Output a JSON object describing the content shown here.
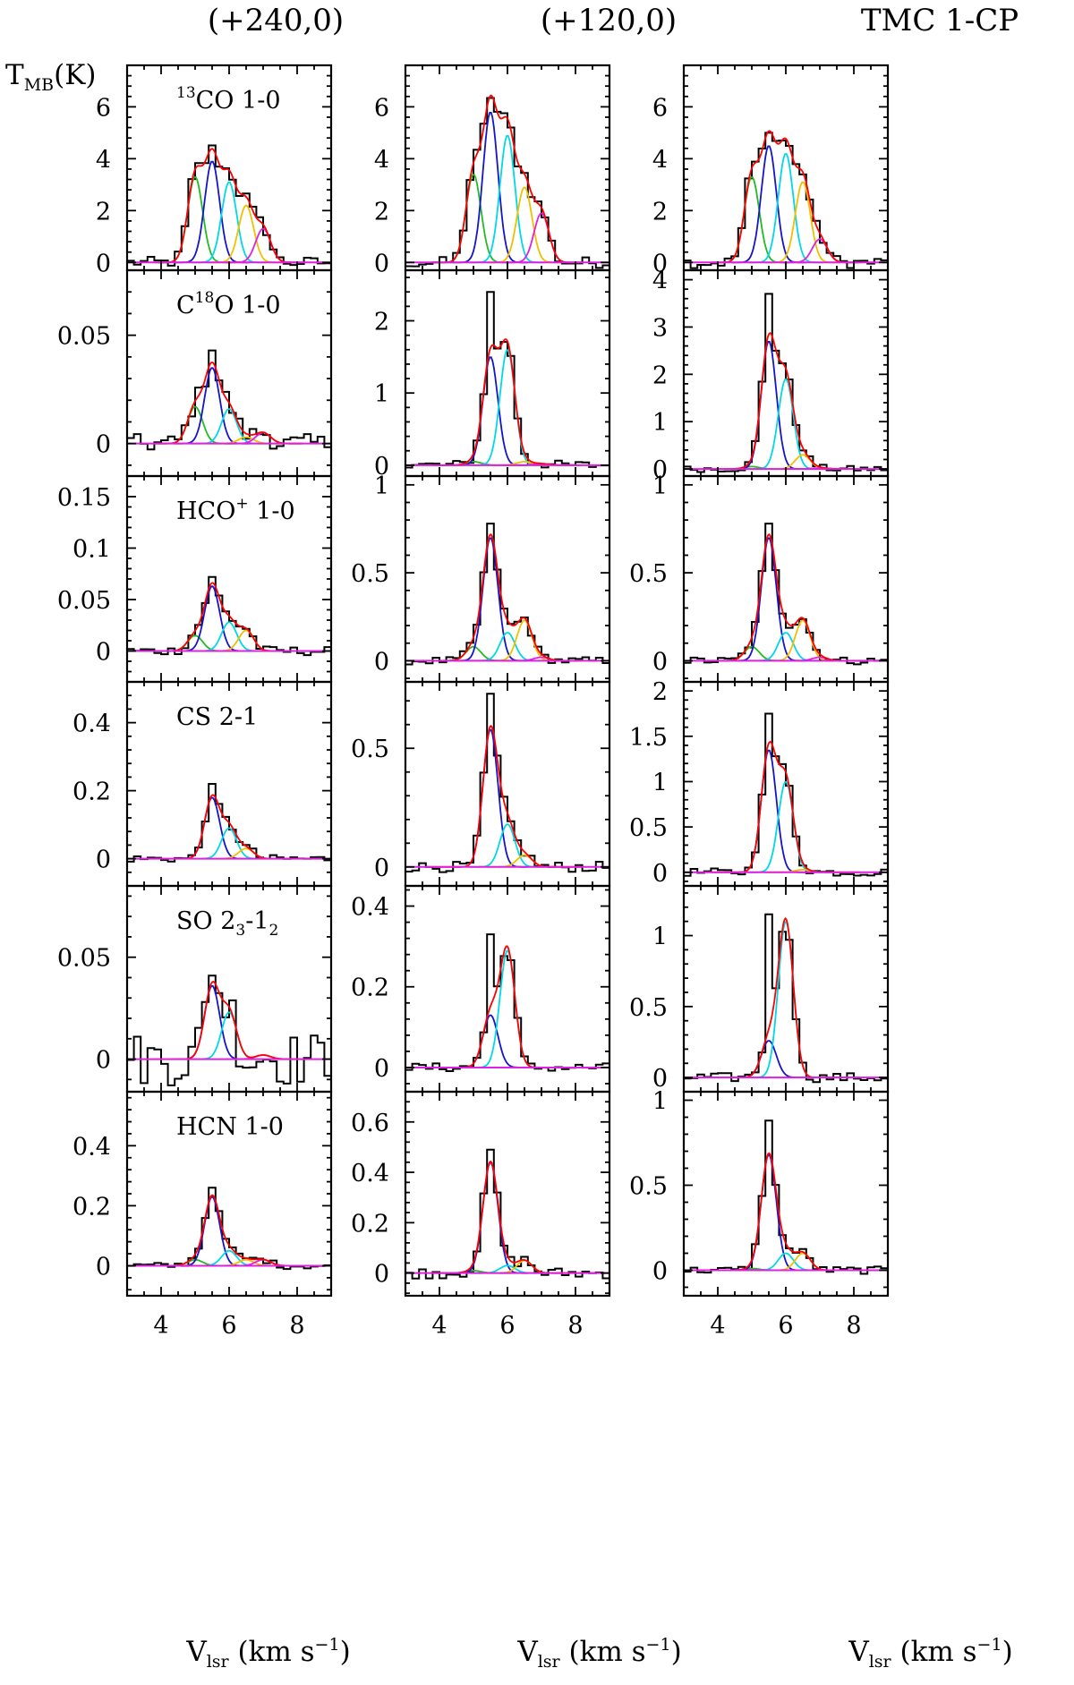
{
  "figure": {
    "ylabel": "T",
    "ylabel_sub": "MB",
    "ylabel_unit": "(K)",
    "xlabel_main": "V",
    "xlabel_sub": "lsr",
    "xlabel_unit": " (km s",
    "xlabel_exp": "−1",
    "xlabel_close": ")",
    "xticks": [
      "4",
      "6",
      "8"
    ],
    "columns": [
      {
        "title": "(+240,0)"
      },
      {
        "title": "(+120,0)"
      },
      {
        "title": "TMC 1-CP"
      }
    ],
    "lines": [
      {
        "pre": "",
        "sup": "13",
        "mid": "CO 1-0",
        "sub": "",
        "post": ""
      },
      {
        "pre": "C",
        "sup": "18",
        "mid": "O 1-0",
        "sub": "",
        "post": ""
      },
      {
        "pre": "HCO",
        "sup": "+",
        "mid": " 1-0",
        "sub": "",
        "post": ""
      },
      {
        "pre": "CS 2-1",
        "sup": "",
        "mid": "",
        "sub": "",
        "post": ""
      },
      {
        "pre": "SO 2",
        "sup": "",
        "mid": "",
        "sub": "3",
        "post": "-1",
        "sub2": "2"
      },
      {
        "pre": "HCN 1-0",
        "sup": "",
        "mid": "",
        "sub": "",
        "post": ""
      }
    ]
  },
  "colors": {
    "observed": "#000000",
    "total_fit": "#ff0000",
    "baseline": "#e020e0",
    "components": [
      "#22bb22",
      "#1515c8",
      "#00d8e8",
      "#f0c000",
      "#e020e0"
    ]
  },
  "chart_data": {
    "type": "line",
    "x_unit": "km s-1",
    "xlim": [
      3.0,
      9.0
    ],
    "component_centers": [
      5.0,
      5.5,
      6.0,
      6.5,
      7.0
    ],
    "component_sigma": 0.22,
    "panels": [
      [
        {
          "ylim": [
            -0.3,
            7.6
          ],
          "yticks": [
            0,
            2,
            4,
            6
          ],
          "amps": [
            3.3,
            3.9,
            3.1,
            2.2,
            1.3
          ],
          "noise": 0.1,
          "peak_obs": 4.1
        },
        {
          "ylim": [
            -0.3,
            7.6
          ],
          "yticks": [
            0,
            2,
            4,
            6
          ],
          "amps": [
            3.4,
            5.8,
            4.9,
            2.9,
            1.9
          ],
          "noise": 0.1,
          "peak_obs": 6.2
        },
        {
          "ylim": [
            -0.3,
            7.6
          ],
          "yticks": [
            0,
            2,
            4,
            6
          ],
          "amps": [
            3.3,
            4.5,
            4.2,
            3.1,
            0.9
          ],
          "noise": 0.1,
          "peak_obs": 5.0
        }
      ],
      [
        {
          "ylim": [
            -0.015,
            0.08
          ],
          "yticks": [
            0,
            0.05
          ],
          "amps": [
            0.017,
            0.035,
            0.016,
            0.003,
            0.005
          ],
          "noise": 0.002,
          "peak_obs": 0.043
        },
        {
          "ylim": [
            -0.15,
            2.7
          ],
          "yticks": [
            0,
            1,
            2
          ],
          "amps": [
            0.05,
            1.5,
            1.6,
            0.05,
            0.02
          ],
          "noise": 0.03,
          "peak_obs": 2.4
        },
        {
          "ylim": [
            -0.15,
            4.2
          ],
          "yticks": [
            0,
            1,
            2,
            3,
            4
          ],
          "amps": [
            0.05,
            2.7,
            1.9,
            0.3,
            0.02
          ],
          "noise": 0.03,
          "peak_obs": 3.7
        }
      ],
      [
        {
          "ylim": [
            -0.03,
            0.17
          ],
          "yticks": [
            0,
            0.05,
            0.1,
            0.15
          ],
          "amps": [
            0.015,
            0.063,
            0.028,
            0.02,
            0.0
          ],
          "noise": 0.002,
          "peak_obs": 0.072
        },
        {
          "ylim": [
            -0.12,
            1.05
          ],
          "yticks": [
            0,
            0.5,
            1
          ],
          "amps": [
            0.08,
            0.7,
            0.16,
            0.23,
            0.02
          ],
          "noise": 0.01,
          "peak_obs": 0.78
        },
        {
          "ylim": [
            -0.12,
            1.05
          ],
          "yticks": [
            0,
            0.5,
            1
          ],
          "amps": [
            0.08,
            0.7,
            0.16,
            0.23,
            0.02
          ],
          "noise": 0.01,
          "peak_obs": 0.78
        }
      ],
      [
        {
          "ylim": [
            -0.08,
            0.52
          ],
          "yticks": [
            0,
            0.2,
            0.4
          ],
          "amps": [
            0.0,
            0.18,
            0.09,
            0.03,
            0.0
          ],
          "noise": 0.005,
          "peak_obs": 0.22
        },
        {
          "ylim": [
            -0.08,
            0.78
          ],
          "yticks": [
            0,
            0.5
          ],
          "amps": [
            0.0,
            0.58,
            0.18,
            0.05,
            0.0
          ],
          "noise": 0.01,
          "peak_obs": 0.73
        },
        {
          "ylim": [
            -0.15,
            2.1
          ],
          "yticks": [
            0,
            0.5,
            1,
            1.5,
            2
          ],
          "amps": [
            0.0,
            1.35,
            1.0,
            0.03,
            0.0
          ],
          "noise": 0.02,
          "peak_obs": 1.75
        }
      ],
      [
        {
          "ylim": [
            -0.016,
            0.085
          ],
          "yticks": [
            0,
            0.05
          ],
          "amps": [
            0.0,
            0.036,
            0.023,
            0.0,
            0.002
          ],
          "noise": 0.006,
          "peak_obs": 0.041
        },
        {
          "ylim": [
            -0.06,
            0.45
          ],
          "yticks": [
            0,
            0.2,
            0.4
          ],
          "amps": [
            0.0,
            0.13,
            0.29,
            0.0,
            0.0
          ],
          "noise": 0.005,
          "peak_obs": 0.33
        },
        {
          "ylim": [
            -0.1,
            1.35
          ],
          "yticks": [
            0,
            0.5,
            1
          ],
          "amps": [
            0.0,
            0.26,
            1.1,
            0.0,
            0.0
          ],
          "noise": 0.015,
          "peak_obs": 1.15
        }
      ],
      [
        {
          "ylim": [
            -0.1,
            0.58
          ],
          "yticks": [
            0,
            0.2,
            0.4
          ],
          "amps": [
            0.02,
            0.23,
            0.05,
            0.02,
            0.02
          ],
          "noise": 0.005,
          "peak_obs": 0.26
        },
        {
          "ylim": [
            -0.09,
            0.72
          ],
          "yticks": [
            0,
            0.2,
            0.4,
            0.6
          ],
          "amps": [
            0.01,
            0.44,
            0.03,
            0.05,
            0.0
          ],
          "noise": 0.01,
          "peak_obs": 0.49
        },
        {
          "ylim": [
            -0.15,
            1.05
          ],
          "yticks": [
            0,
            0.5,
            1
          ],
          "amps": [
            0.01,
            0.68,
            0.1,
            0.1,
            0.0
          ],
          "noise": 0.01,
          "peak_obs": 0.88
        }
      ]
    ]
  }
}
